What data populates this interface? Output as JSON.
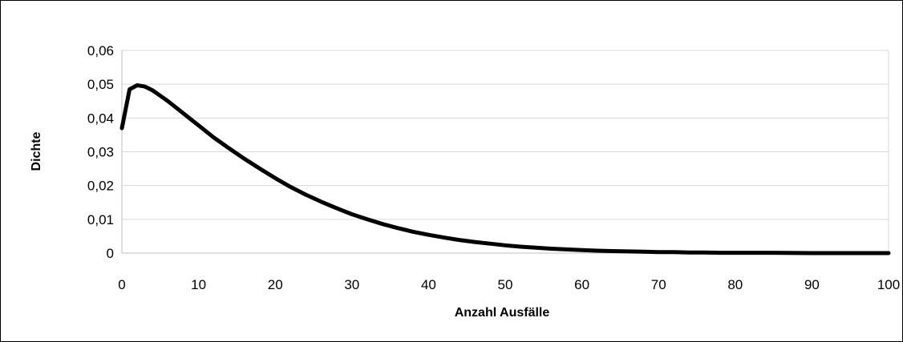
{
  "chart_data": {
    "type": "line",
    "title": "",
    "xlabel": "Anzahl Ausfälle",
    "ylabel": "Dichte",
    "xlim": [
      0,
      100
    ],
    "ylim": [
      0,
      0.06
    ],
    "x_ticks": [
      0,
      10,
      20,
      30,
      40,
      50,
      60,
      70,
      80,
      90,
      100
    ],
    "x_tick_labels": [
      "0",
      "10",
      "20",
      "30",
      "40",
      "50",
      "60",
      "70",
      "80",
      "90",
      "100"
    ],
    "y_ticks": [
      0,
      0.01,
      0.02,
      0.03,
      0.04,
      0.05,
      0.06
    ],
    "y_tick_labels": [
      "0",
      "0,01",
      "0,02",
      "0,03",
      "0,04",
      "0,05",
      "0,06"
    ],
    "grid": "horizontal",
    "legend": "none",
    "line_color": "#000000",
    "series": [
      {
        "x": [
          0,
          1,
          2,
          3,
          4,
          5,
          6,
          7,
          8,
          9,
          10,
          12,
          14,
          16,
          18,
          20,
          22,
          24,
          26,
          28,
          30,
          32,
          34,
          36,
          38,
          40,
          42,
          44,
          46,
          48,
          50,
          52,
          54,
          56,
          58,
          60,
          62,
          64,
          66,
          68,
          70,
          72,
          74,
          76,
          78,
          80,
          85,
          90,
          95,
          100
        ],
        "values": [
          0.037,
          0.0485,
          0.0497,
          0.0493,
          0.0482,
          0.0466,
          0.045,
          0.0432,
          0.0414,
          0.0396,
          0.0378,
          0.0342,
          0.031,
          0.0279,
          0.025,
          0.0222,
          0.0196,
          0.0173,
          0.0152,
          0.0133,
          0.0115,
          0.01,
          0.0086,
          0.0074,
          0.0063,
          0.0054,
          0.0046,
          0.0039,
          0.0033,
          0.0028,
          0.0023,
          0.0019,
          0.0016,
          0.0013,
          0.0011,
          0.0009,
          0.0007,
          0.0006,
          0.0005,
          0.0004,
          0.0003,
          0.0003,
          0.0002,
          0.0002,
          0.0001,
          0.0001,
          0.0001,
          0.0,
          0.0,
          0.0
        ]
      }
    ]
  }
}
